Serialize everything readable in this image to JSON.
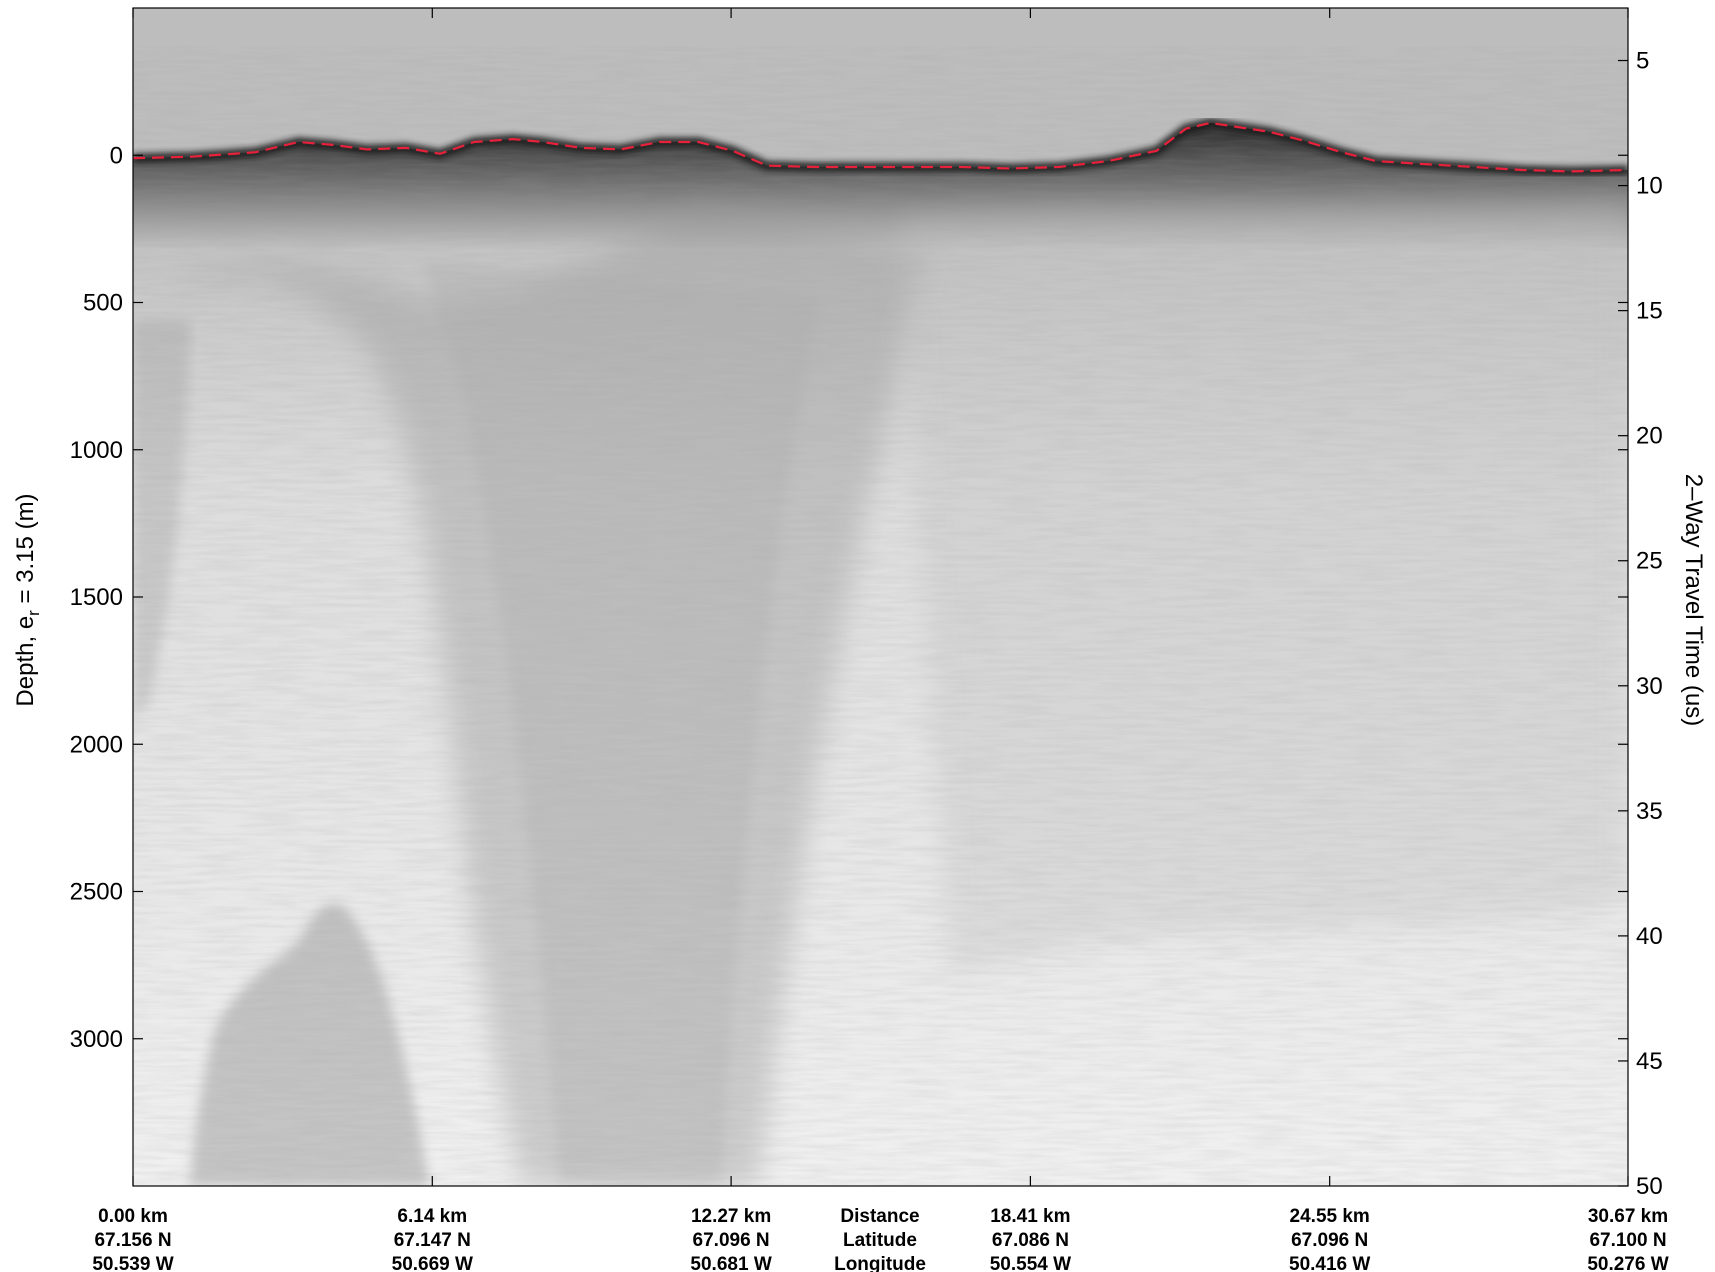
{
  "chart_data": {
    "type": "heatmap",
    "colormap": "grayscale radargram",
    "left_axis": {
      "label_main": "Depth, e",
      "label_sub": "r",
      "label_tail": " = 3.15 (m)",
      "range": [
        -500,
        3500
      ],
      "inverted": true,
      "ticks": [
        0,
        500,
        1000,
        1500,
        2000,
        2500,
        3000
      ]
    },
    "right_axis": {
      "label": "2–Way Travel Time (us)",
      "range": [
        2.9,
        50
      ],
      "inverted": true,
      "ticks": [
        5,
        10,
        15,
        20,
        25,
        30,
        35,
        40,
        45,
        50
      ]
    },
    "x_axis": {
      "range": [
        0,
        30.67
      ],
      "info_titles": [
        "Distance",
        "Latitude",
        "Longitude"
      ],
      "ticks": [
        {
          "value": 0.0,
          "distance": "0.00 km",
          "latitude": "67.156 N",
          "longitude": "50.539 W"
        },
        {
          "value": 6.14,
          "distance": "6.14 km",
          "latitude": "67.147 N",
          "longitude": "50.669 W"
        },
        {
          "value": 12.27,
          "distance": "12.27 km",
          "latitude": "67.096 N",
          "longitude": "50.681 W"
        },
        {
          "value": 18.41,
          "distance": "18.41 km",
          "latitude": "67.086 N",
          "longitude": "50.554 W"
        },
        {
          "value": 24.55,
          "distance": "24.55 km",
          "latitude": "67.096 N",
          "longitude": "50.416 W"
        },
        {
          "value": 30.67,
          "distance": "30.67 km",
          "latitude": "67.100 N",
          "longitude": "50.276 W"
        }
      ]
    },
    "surface_pick": {
      "color": "#e8203a",
      "style": "dashed",
      "x_km": [
        0,
        1.2,
        2.5,
        3.4,
        4.1,
        4.8,
        5.6,
        6.3,
        7.0,
        7.8,
        8.4,
        9.2,
        10.0,
        10.8,
        11.6,
        12.3,
        13.0,
        14.0,
        15.0,
        16.0,
        17.0,
        18.0,
        19.0,
        20.0,
        21.0,
        21.6,
        22.1,
        22.7,
        23.3,
        24.0,
        24.8,
        25.5,
        26.5,
        27.5,
        28.5,
        29.5,
        30.67
      ],
      "depth_m": [
        10,
        5,
        -10,
        -45,
        -35,
        -20,
        -25,
        -5,
        -45,
        -55,
        -45,
        -25,
        -20,
        -45,
        -45,
        -15,
        35,
        40,
        40,
        40,
        40,
        45,
        40,
        20,
        -15,
        -90,
        -110,
        -95,
        -80,
        -50,
        -10,
        20,
        30,
        40,
        50,
        55,
        50
      ]
    }
  }
}
